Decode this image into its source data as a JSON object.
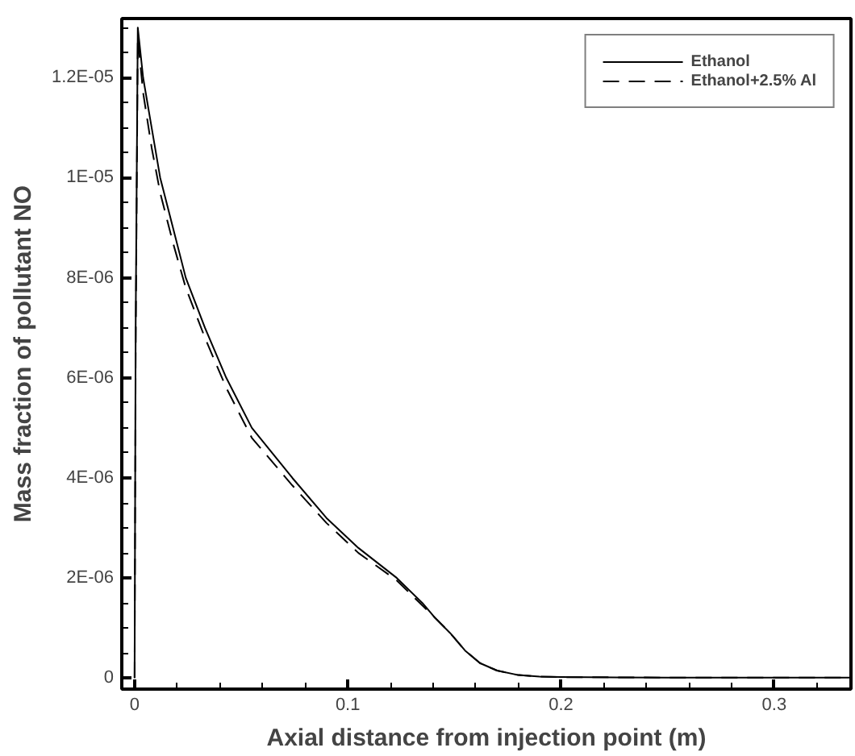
{
  "chart_data": {
    "type": "line",
    "xlabel": "Axial distance from injection point (m)",
    "ylabel": "Mass fraction of pollutant NO",
    "xlim": [
      -0.006,
      0.336
    ],
    "ylim": [
      -2.2e-07,
      1.318e-05
    ],
    "xticks": [
      0,
      0.1,
      0.2,
      0.3
    ],
    "yticks": [
      {
        "value": 0,
        "label": "0"
      },
      {
        "value": 2e-06,
        "label": "2E-06"
      },
      {
        "value": 4e-06,
        "label": "4E-06"
      },
      {
        "value": 6e-06,
        "label": "6E-06"
      },
      {
        "value": 8e-06,
        "label": "8E-06"
      },
      {
        "value": 1e-05,
        "label": "1E-05"
      },
      {
        "value": 1.2e-05,
        "label": "1.2E-05"
      }
    ],
    "x": [
      0,
      0.0005,
      0.0015,
      0.004,
      0.008,
      0.012,
      0.018,
      0.024,
      0.033,
      0.043,
      0.055,
      0.074,
      0.09,
      0.105,
      0.123,
      0.135,
      0.141,
      0.148,
      0.155,
      0.162,
      0.17,
      0.18,
      0.19,
      0.2,
      0.25,
      0.3,
      0.336
    ],
    "series": [
      {
        "name": "Ethanol",
        "color": "#000000",
        "line_style": "solid",
        "values": [
          0,
          7e-06,
          1.3e-05,
          1.2e-05,
          1.1e-05,
          1e-05,
          9e-06,
          8e-06,
          7e-06,
          6e-06,
          5e-06,
          4e-06,
          3.2e-06,
          2.6e-06,
          2e-06,
          1.5e-06,
          1.2e-06,
          9e-07,
          5.5e-07,
          3e-07,
          1.5e-07,
          6e-08,
          3e-08,
          2e-08,
          1e-08,
          1e-08,
          1e-08
        ]
      },
      {
        "name": "Ethanol+2.5% Al",
        "color": "#000000",
        "line_style": "dashed",
        "values": [
          0,
          6.5e-06,
          1.28e-05,
          1.17e-05,
          1.06e-05,
          9.7e-06,
          8.7e-06,
          7.8e-06,
          6.8e-06,
          5.8e-06,
          4.8e-06,
          3.85e-06,
          3.1e-06,
          2.5e-06,
          1.95e-06,
          1.45e-06,
          1.2e-06,
          9e-07,
          5.5e-07,
          3e-07,
          1.5e-07,
          6e-08,
          3e-08,
          2e-08,
          1e-08,
          1e-08,
          1e-08
        ]
      }
    ],
    "grid": false,
    "legend": "top right",
    "marker": "none"
  }
}
